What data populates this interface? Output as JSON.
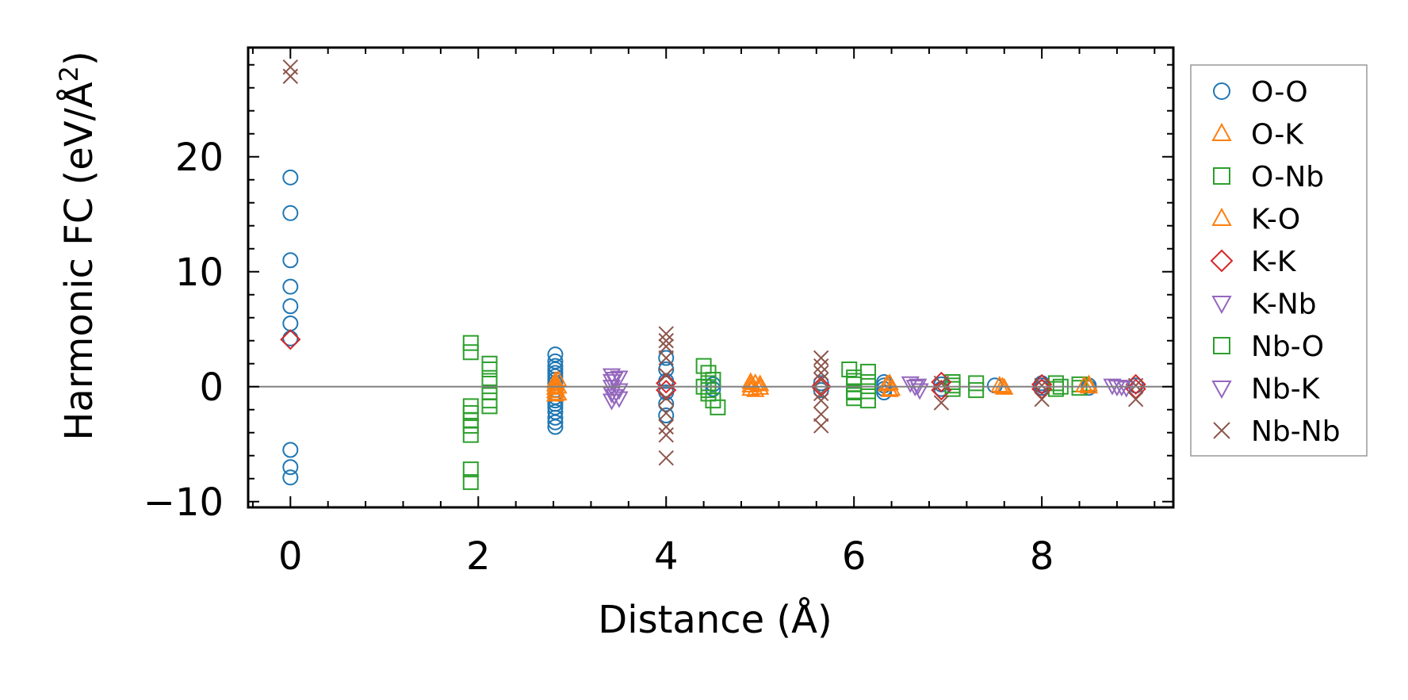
{
  "chart_data": {
    "type": "scatter",
    "xlabel": "Distance (Å)",
    "ylabel_main": "Harmonic FC (eV/Å",
    "ylabel_sup": "2",
    "ylabel_close": ")",
    "xlim": [
      -0.45,
      9.4
    ],
    "ylim": [
      -10.5,
      29.5
    ],
    "xticks": [
      0,
      2,
      4,
      6,
      8
    ],
    "yticks": [
      -10,
      0,
      10,
      20
    ],
    "xtick_labels": [
      "0",
      "2",
      "4",
      "6",
      "8"
    ],
    "ytick_labels": [
      "−10",
      "0",
      "10",
      "20"
    ],
    "zero_line": 0,
    "grid": false,
    "legend_position": "outside-right",
    "series": [
      {
        "name": "O-O",
        "marker": "circle",
        "color": "#1f77b4",
        "points": [
          [
            0,
            18.2
          ],
          [
            0,
            15.1
          ],
          [
            0,
            11.0
          ],
          [
            0,
            8.7
          ],
          [
            0,
            7.0
          ],
          [
            0,
            5.5
          ],
          [
            0,
            4.2
          ],
          [
            0,
            -5.5
          ],
          [
            0,
            -7.0
          ],
          [
            0,
            -7.9
          ],
          [
            2.82,
            2.8
          ],
          [
            2.82,
            2.2
          ],
          [
            2.82,
            1.8
          ],
          [
            2.82,
            1.5
          ],
          [
            2.82,
            1.2
          ],
          [
            2.82,
            0.9
          ],
          [
            2.82,
            0.6
          ],
          [
            2.82,
            0.3
          ],
          [
            2.82,
            0.0
          ],
          [
            2.82,
            -0.3
          ],
          [
            2.82,
            -0.6
          ],
          [
            2.82,
            -0.9
          ],
          [
            2.82,
            -1.2
          ],
          [
            2.82,
            -1.5
          ],
          [
            2.82,
            -1.8
          ],
          [
            2.82,
            -2.2
          ],
          [
            2.82,
            -2.7
          ],
          [
            2.82,
            -3.1
          ],
          [
            2.82,
            -3.5
          ],
          [
            4.0,
            2.5
          ],
          [
            4.0,
            1.5
          ],
          [
            4.0,
            0.5
          ],
          [
            4.0,
            -0.5
          ],
          [
            4.0,
            -1.5
          ],
          [
            4.0,
            -2.5
          ],
          [
            4.5,
            0.2
          ],
          [
            4.5,
            -0.2
          ],
          [
            5.65,
            0.3
          ],
          [
            5.65,
            -0.3
          ],
          [
            6.32,
            0.4
          ],
          [
            6.32,
            0.1
          ],
          [
            6.32,
            -0.2
          ],
          [
            6.32,
            -0.5
          ],
          [
            6.93,
            0.2
          ],
          [
            6.93,
            -0.2
          ],
          [
            7.5,
            0.1
          ],
          [
            8.0,
            0.3
          ],
          [
            8.0,
            0.1
          ],
          [
            8.0,
            -0.1
          ],
          [
            8.5,
            0.1
          ],
          [
            8.5,
            -0.1
          ],
          [
            9.0,
            0.1
          ]
        ]
      },
      {
        "name": "O-K",
        "marker": "triangle-up",
        "color": "#ff7f0e",
        "points": [
          [
            2.82,
            0.5
          ],
          [
            2.82,
            0.2
          ],
          [
            2.82,
            -0.1
          ],
          [
            2.82,
            -0.4
          ],
          [
            2.82,
            -0.7
          ],
          [
            4.9,
            0.4
          ],
          [
            4.9,
            0.1
          ],
          [
            4.9,
            -0.2
          ],
          [
            5.0,
            0.2
          ],
          [
            5.0,
            -0.1
          ],
          [
            6.35,
            0.2
          ],
          [
            6.4,
            -0.2
          ],
          [
            7.55,
            0.1
          ],
          [
            7.6,
            -0.1
          ],
          [
            8.5,
            0.2
          ],
          [
            8.5,
            0.0
          ]
        ]
      },
      {
        "name": "O-Nb",
        "marker": "square",
        "color": "#2ca02c",
        "points": [
          [
            1.92,
            3.8
          ],
          [
            1.92,
            3.0
          ],
          [
            1.92,
            -1.7
          ],
          [
            1.92,
            -2.3
          ],
          [
            1.92,
            -2.9
          ],
          [
            1.92,
            -3.4
          ],
          [
            1.92,
            -4.2
          ],
          [
            1.92,
            -7.2
          ],
          [
            1.92,
            -8.3
          ],
          [
            2.12,
            2.0
          ],
          [
            2.12,
            1.5
          ],
          [
            2.12,
            0.5
          ],
          [
            2.12,
            -0.5
          ],
          [
            2.12,
            -1.2
          ],
          [
            2.12,
            -1.7
          ],
          [
            4.4,
            1.8
          ],
          [
            4.45,
            1.2
          ],
          [
            4.5,
            0.6
          ],
          [
            4.4,
            0.0
          ],
          [
            4.45,
            -0.6
          ],
          [
            4.5,
            -1.2
          ],
          [
            4.55,
            -1.8
          ],
          [
            5.95,
            1.5
          ],
          [
            6.0,
            0.8
          ],
          [
            6.0,
            0.2
          ],
          [
            6.0,
            -0.4
          ],
          [
            6.0,
            -1.0
          ],
          [
            6.15,
            1.3
          ],
          [
            6.15,
            0.4
          ],
          [
            6.15,
            -0.4
          ],
          [
            6.15,
            -1.2
          ],
          [
            7.05,
            0.4
          ],
          [
            7.05,
            -0.2
          ],
          [
            7.3,
            0.3
          ],
          [
            7.3,
            -0.3
          ],
          [
            8.15,
            0.3
          ],
          [
            8.15,
            -0.2
          ],
          [
            8.4,
            0.2
          ],
          [
            8.4,
            -0.1
          ]
        ]
      },
      {
        "name": "K-O",
        "marker": "triangle-up",
        "color": "#ff7f0e",
        "points": [
          [
            2.85,
            0.6
          ],
          [
            2.85,
            0.0
          ],
          [
            2.85,
            -0.6
          ],
          [
            4.95,
            0.3
          ],
          [
            4.95,
            -0.3
          ],
          [
            6.38,
            0.3
          ],
          [
            6.38,
            -0.3
          ],
          [
            7.58,
            0.0
          ],
          [
            8.45,
            0.1
          ]
        ]
      },
      {
        "name": "K-K",
        "marker": "diamond",
        "color": "#d62728",
        "points": [
          [
            0,
            4.1
          ],
          [
            4.0,
            0.3
          ],
          [
            4.0,
            -0.3
          ],
          [
            5.65,
            0.0
          ],
          [
            6.93,
            0.4
          ],
          [
            6.93,
            -0.3
          ],
          [
            8.0,
            0.2
          ],
          [
            8.0,
            -0.2
          ],
          [
            9.0,
            0.2
          ],
          [
            9.0,
            -0.2
          ]
        ]
      },
      {
        "name": "K-Nb",
        "marker": "triangle-down",
        "color": "#9467bd",
        "points": [
          [
            3.42,
            1.0
          ],
          [
            3.42,
            0.5
          ],
          [
            3.42,
            0.0
          ],
          [
            3.42,
            -0.6
          ],
          [
            3.42,
            -1.2
          ],
          [
            3.5,
            0.8
          ],
          [
            3.5,
            -0.3
          ],
          [
            3.5,
            -1.0
          ],
          [
            6.6,
            0.3
          ],
          [
            6.65,
            0.0
          ],
          [
            6.7,
            -0.3
          ],
          [
            8.75,
            0.1
          ],
          [
            8.85,
            0.0
          ],
          [
            8.9,
            -0.1
          ]
        ]
      },
      {
        "name": "Nb-O",
        "marker": "square",
        "color": "#2ca02c",
        "points": [
          [
            4.45,
            0.3
          ],
          [
            4.45,
            -0.3
          ],
          [
            6.0,
            0.5
          ],
          [
            6.0,
            -0.5
          ],
          [
            7.05,
            0.1
          ],
          [
            8.2,
            0.0
          ]
        ]
      },
      {
        "name": "Nb-K",
        "marker": "triangle-down",
        "color": "#9467bd",
        "points": [
          [
            3.45,
            0.7
          ],
          [
            3.45,
            -0.8
          ],
          [
            6.68,
            0.1
          ],
          [
            8.8,
            0.0
          ]
        ]
      },
      {
        "name": "Nb-Nb",
        "marker": "x",
        "color": "#8c564b",
        "points": [
          [
            0,
            27.8
          ],
          [
            0,
            27.0
          ],
          [
            4.0,
            4.6
          ],
          [
            4.0,
            4.0
          ],
          [
            4.0,
            3.5
          ],
          [
            4.0,
            2.5
          ],
          [
            4.0,
            1.0
          ],
          [
            4.0,
            -1.0
          ],
          [
            4.0,
            -2.3
          ],
          [
            4.0,
            -3.5
          ],
          [
            4.0,
            -4.2
          ],
          [
            4.0,
            -6.2
          ],
          [
            5.65,
            2.5
          ],
          [
            5.65,
            1.8
          ],
          [
            5.65,
            1.2
          ],
          [
            5.65,
            0.6
          ],
          [
            5.65,
            -0.6
          ],
          [
            5.65,
            -1.2
          ],
          [
            5.65,
            -2.4
          ],
          [
            5.65,
            -3.4
          ],
          [
            6.93,
            0.3
          ],
          [
            6.93,
            -1.4
          ],
          [
            8.0,
            0.1
          ],
          [
            8.0,
            -1.1
          ],
          [
            9.0,
            0.1
          ],
          [
            9.0,
            -1.1
          ]
        ]
      }
    ]
  }
}
